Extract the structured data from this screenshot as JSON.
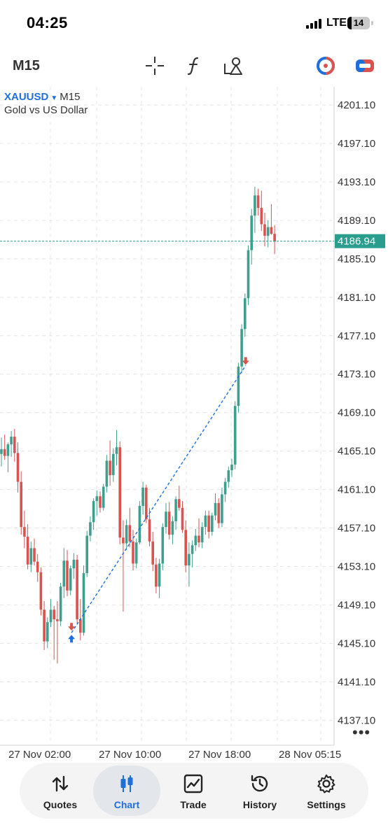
{
  "status_bar": {
    "time": "04:25",
    "network": "LTE",
    "battery": "14"
  },
  "toolbar": {
    "timeframe": "M15",
    "tools": [
      "crosshair-icon",
      "function-icon",
      "objects-icon",
      "timeframe-icon",
      "trade-toggle-icon"
    ]
  },
  "chart": {
    "symbol": "XAUUSD",
    "timeframe": "M15",
    "description": "Gold vs US Dollar",
    "current_price": "4186.94"
  },
  "chart_data": {
    "type": "candlestick",
    "y_ticks": [
      "4201.10",
      "4197.10",
      "4193.10",
      "4189.10",
      "4185.10",
      "4181.10",
      "4177.10",
      "4173.10",
      "4169.10",
      "4165.10",
      "4161.10",
      "4157.10",
      "4153.10",
      "4149.10",
      "4145.10",
      "4141.10",
      "4137.10"
    ],
    "x_ticks": [
      "27 Nov 02:00",
      "27 Nov 10:00",
      "27 Nov 18:00",
      "28 Nov 05:15"
    ],
    "ylim": [
      4134.5,
      4203.0
    ],
    "current_price_line": 4186.94,
    "grid": true,
    "trade": {
      "entry_price": 4146.2,
      "exit_price": 4174.0
    },
    "candles": [
      [
        4164.8,
        4166.5,
        4163.5,
        4165.3
      ],
      [
        4165.3,
        4166.8,
        4164.2,
        4164.6
      ],
      [
        4164.6,
        4166.0,
        4162.9,
        4165.8
      ],
      [
        4165.8,
        4167.2,
        4164.5,
        4166.6
      ],
      [
        4166.6,
        4167.4,
        4164.0,
        4164.9
      ],
      [
        4164.9,
        4166.0,
        4160.8,
        4161.9
      ],
      [
        4161.9,
        4163.0,
        4156.4,
        4157.2
      ],
      [
        4157.2,
        4158.9,
        4155.0,
        4156.2
      ],
      [
        4156.2,
        4157.5,
        4152.8,
        4153.3
      ],
      [
        4153.3,
        4155.7,
        4152.5,
        4155.0
      ],
      [
        4155.0,
        4156.0,
        4153.2,
        4153.6
      ],
      [
        4153.6,
        4154.4,
        4151.5,
        4152.5
      ],
      [
        4152.5,
        4153.0,
        4148.0,
        4148.6
      ],
      [
        4148.6,
        4149.5,
        4144.4,
        4145.3
      ],
      [
        4145.3,
        4147.8,
        4144.6,
        4147.3
      ],
      [
        4147.3,
        4149.7,
        4146.8,
        4148.6
      ],
      [
        4148.6,
        4149.0,
        4143.4,
        4147.6
      ],
      [
        4147.6,
        4149.5,
        4143.0,
        4147.4
      ],
      [
        4147.4,
        4151.4,
        4146.9,
        4151.0
      ],
      [
        4151.0,
        4155.0,
        4149.8,
        4153.7
      ],
      [
        4153.7,
        4154.8,
        4150.0,
        4150.6
      ],
      [
        4150.6,
        4153.2,
        4150.1,
        4152.9
      ],
      [
        4152.9,
        4154.5,
        4151.8,
        4153.8
      ],
      [
        4153.8,
        4154.3,
        4147.2,
        4147.6
      ],
      [
        4147.6,
        4149.7,
        4145.4,
        4146.2
      ],
      [
        4146.2,
        4153.2,
        4145.9,
        4152.4
      ],
      [
        4152.4,
        4156.8,
        4152.0,
        4156.3
      ],
      [
        4156.3,
        4158.3,
        4155.7,
        4157.7
      ],
      [
        4157.7,
        4160.2,
        4156.9,
        4159.9
      ],
      [
        4159.9,
        4161.0,
        4158.4,
        4160.4
      ],
      [
        4160.4,
        4160.9,
        4158.7,
        4159.2
      ],
      [
        4159.2,
        4161.7,
        4158.9,
        4161.4
      ],
      [
        4161.4,
        4164.7,
        4160.8,
        4164.1
      ],
      [
        4164.1,
        4166.2,
        4161.5,
        4162.6
      ],
      [
        4162.6,
        4165.4,
        4161.9,
        4164.8
      ],
      [
        4164.8,
        4167.3,
        4163.6,
        4165.5
      ],
      [
        4165.5,
        4166.1,
        4155.4,
        4156.1
      ],
      [
        4156.1,
        4157.9,
        4148.4,
        4155.5
      ],
      [
        4155.5,
        4158.0,
        4154.8,
        4157.4
      ],
      [
        4157.4,
        4159.2,
        4155.1,
        4155.7
      ],
      [
        4155.7,
        4156.9,
        4152.7,
        4153.4
      ],
      [
        4153.4,
        4156.0,
        4152.9,
        4155.6
      ],
      [
        4155.6,
        4159.9,
        4155.4,
        4159.4
      ],
      [
        4159.4,
        4161.9,
        4158.5,
        4161.3
      ],
      [
        4161.3,
        4161.6,
        4157.6,
        4158.0
      ],
      [
        4158.0,
        4159.2,
        4155.2,
        4155.7
      ],
      [
        4155.7,
        4156.7,
        4152.6,
        4153.3
      ],
      [
        4153.3,
        4154.0,
        4150.3,
        4151.0
      ],
      [
        4151.0,
        4153.9,
        4149.8,
        4153.4
      ],
      [
        4153.4,
        4157.6,
        4152.7,
        4157.2
      ],
      [
        4157.2,
        4159.7,
        4156.5,
        4158.8
      ],
      [
        4158.8,
        4159.8,
        4155.9,
        4156.4
      ],
      [
        4156.4,
        4158.3,
        4155.4,
        4157.8
      ],
      [
        4157.8,
        4160.4,
        4156.9,
        4160.1
      ],
      [
        4160.1,
        4161.5,
        4158.9,
        4159.2
      ],
      [
        4159.2,
        4159.9,
        4156.6,
        4156.9
      ],
      [
        4156.9,
        4157.9,
        4152.5,
        4153.2
      ],
      [
        4153.2,
        4155.6,
        4151.0,
        4154.4
      ],
      [
        4154.4,
        4155.8,
        4153.0,
        4155.3
      ],
      [
        4155.3,
        4157.0,
        4154.7,
        4156.3
      ],
      [
        4156.3,
        4158.1,
        4155.1,
        4155.6
      ],
      [
        4155.6,
        4157.7,
        4155.0,
        4157.2
      ],
      [
        4157.2,
        4158.9,
        4156.4,
        4158.4
      ],
      [
        4158.4,
        4158.9,
        4156.0,
        4156.7
      ],
      [
        4156.7,
        4158.7,
        4156.3,
        4158.4
      ],
      [
        4158.4,
        4160.7,
        4157.9,
        4159.7
      ],
      [
        4159.7,
        4160.2,
        4157.1,
        4157.6
      ],
      [
        4157.6,
        4161.3,
        4157.2,
        4160.6
      ],
      [
        4160.6,
        4162.3,
        4159.8,
        4161.9
      ],
      [
        4161.9,
        4163.5,
        4161.3,
        4163.1
      ],
      [
        4163.1,
        4164.3,
        4162.4,
        4163.7
      ],
      [
        4163.7,
        4170.3,
        4163.2,
        4169.8
      ],
      [
        4169.8,
        4174.3,
        4169.1,
        4173.9
      ],
      [
        4173.9,
        4178.3,
        4173.2,
        4177.8
      ],
      [
        4177.8,
        4181.5,
        4177.0,
        4181.0
      ],
      [
        4181.0,
        4186.5,
        4180.3,
        4186.0
      ],
      [
        4186.0,
        4190.3,
        4184.5,
        4189.6
      ],
      [
        4189.6,
        4192.6,
        4187.8,
        4191.7
      ],
      [
        4191.7,
        4192.4,
        4189.6,
        4190.4
      ],
      [
        4190.4,
        4192.2,
        4188.0,
        4188.7
      ],
      [
        4188.7,
        4189.9,
        4186.4,
        4187.5
      ],
      [
        4187.5,
        4189.1,
        4186.3,
        4188.4
      ],
      [
        4188.4,
        4190.8,
        4187.6,
        4187.7
      ],
      [
        4187.7,
        4188.6,
        4185.6,
        4186.9
      ]
    ]
  },
  "nav": {
    "items": [
      {
        "label": "Quotes",
        "icon": "quotes-icon",
        "active": false
      },
      {
        "label": "Chart",
        "icon": "chart-icon",
        "active": true
      },
      {
        "label": "Trade",
        "icon": "trade-icon",
        "active": false
      },
      {
        "label": "History",
        "icon": "history-icon",
        "active": false
      },
      {
        "label": "Settings",
        "icon": "settings-icon",
        "active": false
      }
    ]
  },
  "colors": {
    "bull": "#3f9f8f",
    "bear": "#d9534f",
    "accent": "#1e6fd9",
    "price_line": "#2a9d8f"
  }
}
